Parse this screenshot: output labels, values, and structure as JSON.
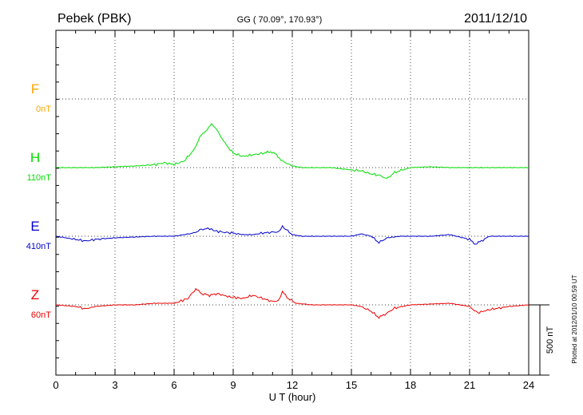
{
  "header": {
    "station": "Pebek (PBK)",
    "coords": "GG ( 70.09°, 170.93°)",
    "date": "2011/12/10"
  },
  "footer": {
    "plotted": "Plotted at 2012/01/10 00:59 UT"
  },
  "chart_data": {
    "type": "line",
    "xlabel": "U T (hour)",
    "xlim": [
      0,
      24
    ],
    "xticks": [
      0,
      3,
      6,
      9,
      12,
      15,
      18,
      21,
      24
    ],
    "grid": true,
    "scale_bar_label": "500 nT",
    "colors": {
      "F": "#ffa500",
      "H": "#00dd00",
      "E": "#0000cc",
      "Z": "#ee0000"
    },
    "series": [
      {
        "name": "F",
        "offset_label": "0nT",
        "x": [],
        "y": []
      },
      {
        "name": "H",
        "offset_label": "110nT",
        "x": [
          0,
          1,
          2,
          3,
          4,
          5,
          5.5,
          6,
          6.5,
          7,
          7.3,
          7.6,
          7.9,
          8.1,
          8.3,
          8.6,
          9,
          9.5,
          10,
          10.5,
          10.9,
          11.2,
          11.5,
          12,
          12.5,
          13,
          14,
          15,
          15.5,
          16,
          16.5,
          16.8,
          17.2,
          18,
          19,
          20,
          21,
          22,
          23,
          24
        ],
        "y": [
          0,
          0,
          0,
          5,
          10,
          18,
          30,
          20,
          40,
          110,
          190,
          230,
          270,
          250,
          210,
          150,
          90,
          70,
          80,
          90,
          100,
          80,
          40,
          10,
          0,
          0,
          0,
          -15,
          -20,
          -40,
          -50,
          -70,
          -30,
          0,
          5,
          0,
          0,
          0,
          0,
          0
        ]
      },
      {
        "name": "E",
        "offset_label": "410nT",
        "x": [
          0,
          0.5,
          1,
          1.5,
          2,
          3,
          4,
          5,
          6,
          7,
          7.3,
          7.8,
          8,
          8.5,
          9,
          9.5,
          10,
          10.5,
          11,
          11.3,
          11.5,
          11.7,
          12,
          12.5,
          13,
          14,
          15,
          15.5,
          16,
          16.4,
          16.8,
          17.5,
          18,
          19,
          20,
          21,
          21.3,
          21.6,
          22,
          23,
          24
        ],
        "y": [
          0,
          -10,
          -20,
          -30,
          -20,
          -10,
          -5,
          0,
          0,
          20,
          40,
          50,
          35,
          25,
          20,
          10,
          10,
          20,
          25,
          30,
          60,
          40,
          10,
          0,
          0,
          0,
          0,
          15,
          0,
          -40,
          -10,
          0,
          0,
          0,
          10,
          -20,
          -50,
          -30,
          0,
          0,
          0
        ]
      },
      {
        "name": "Z",
        "offset_label": "60nT",
        "x": [
          0,
          1,
          1.5,
          2,
          3,
          4,
          5,
          6,
          6.7,
          7.1,
          7.4,
          7.8,
          8.2,
          8.8,
          9.5,
          10,
          10.5,
          11,
          11.3,
          11.5,
          11.8,
          12.2,
          13,
          14,
          15,
          15.5,
          16,
          16.4,
          16.7,
          17.2,
          18,
          19,
          20,
          21,
          21.4,
          22,
          23,
          24
        ],
        "y": [
          0,
          -10,
          -25,
          -10,
          0,
          0,
          10,
          10,
          40,
          100,
          70,
          60,
          70,
          50,
          40,
          60,
          40,
          20,
          30,
          80,
          40,
          10,
          0,
          0,
          0,
          -10,
          -40,
          -80,
          -60,
          -20,
          0,
          5,
          10,
          -10,
          -50,
          -30,
          -10,
          0
        ]
      }
    ]
  }
}
